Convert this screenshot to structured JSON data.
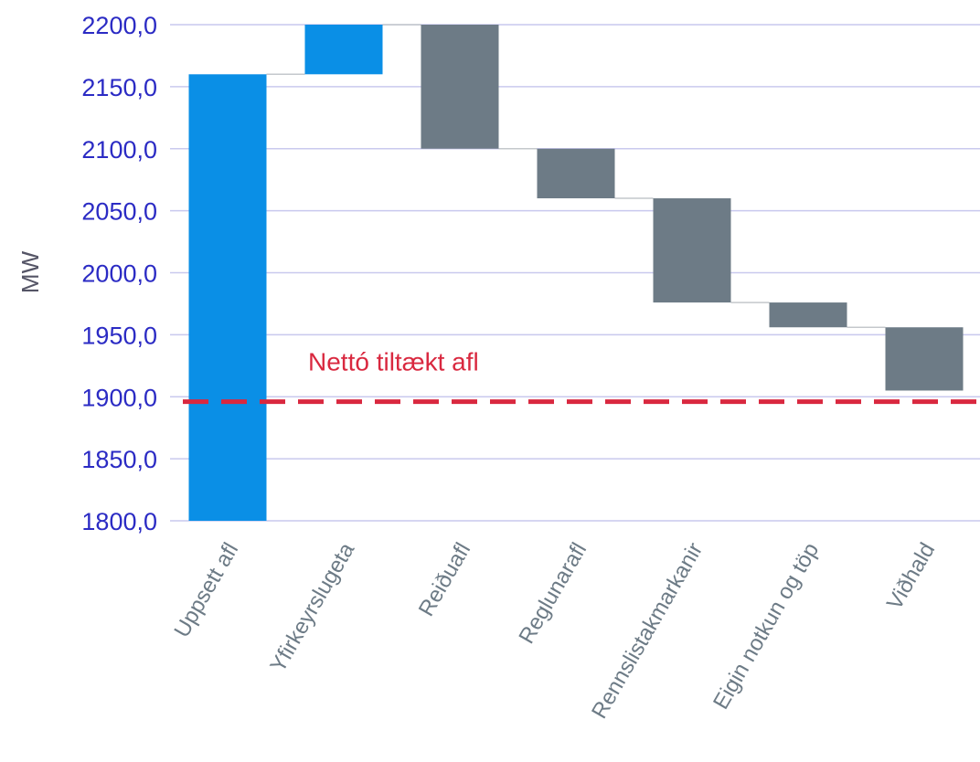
{
  "chart_data": {
    "type": "waterfall",
    "ylabel": "MW",
    "ylim": [
      1800,
      2200
    ],
    "ytick_values": [
      1800,
      1850,
      1900,
      1950,
      2000,
      2050,
      2100,
      2150,
      2200
    ],
    "ytick_labels": [
      "1800,0",
      "1850,0",
      "1900,0",
      "1950,0",
      "2000,0",
      "2050,0",
      "2100,0",
      "2150,0",
      "2200,0"
    ],
    "grid": true,
    "categories": [
      "Uppsett afl",
      "Yfirkeyrslugeta",
      "Reiðuafl",
      "Reglunarafl",
      "Rennslistakmarkanir",
      "Eigin notkun og töp",
      "Viðhald"
    ],
    "bars": [
      {
        "start": 1800,
        "end": 2160,
        "kind": "increase"
      },
      {
        "start": 2160,
        "end": 2200,
        "kind": "increase"
      },
      {
        "start": 2200,
        "end": 2100,
        "kind": "decrease"
      },
      {
        "start": 2100,
        "end": 2060,
        "kind": "decrease"
      },
      {
        "start": 2060,
        "end": 1976,
        "kind": "decrease"
      },
      {
        "start": 1976,
        "end": 1956,
        "kind": "decrease"
      },
      {
        "start": 1956,
        "end": 1905,
        "kind": "decrease"
      }
    ],
    "reference_line": {
      "value": 1896,
      "label": "Nettó tiltækt afl",
      "style": "dashed"
    },
    "colors": {
      "increase": "#0a8fe6",
      "decrease": "#6d7b86",
      "reference": "#d9283f",
      "tick_text": "#2b2bc4",
      "axis_label": "#555566",
      "category_text": "#6d7b86",
      "grid": "#c9c9ee"
    }
  }
}
